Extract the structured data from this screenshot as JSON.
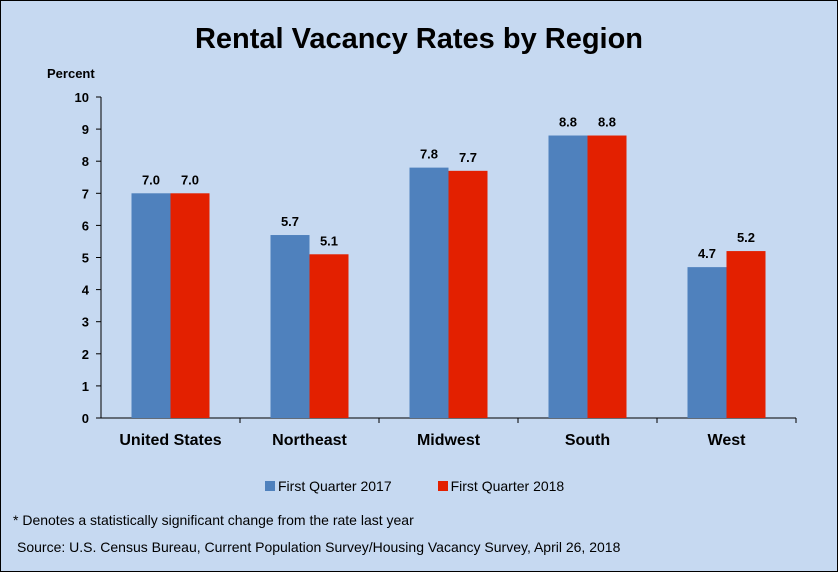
{
  "chart_data": {
    "type": "bar",
    "title": "Rental Vacancy Rates by Region",
    "ylabel": "Percent",
    "xlabel": "",
    "ylim": [
      0,
      10
    ],
    "yticks": [
      "0",
      "1",
      "2",
      "3",
      "4",
      "5",
      "6",
      "7",
      "8",
      "9",
      "10"
    ],
    "categories": [
      "United States",
      "Northeast",
      "Midwest",
      "South",
      "West"
    ],
    "series": [
      {
        "name": "First Quarter 2017",
        "color": "#4f81bd",
        "values": [
          7.0,
          5.7,
          7.8,
          8.8,
          4.7
        ],
        "labels": [
          "7.0",
          "5.7",
          "7.8",
          "8.8",
          "4.7"
        ]
      },
      {
        "name": "First Quarter 2018",
        "color": "#e32000",
        "values": [
          7.0,
          5.1,
          7.7,
          8.8,
          5.2
        ],
        "labels": [
          "7.0",
          "5.1",
          "7.7",
          "8.8",
          "5.2"
        ]
      }
    ],
    "grid": false,
    "legend_position": "bottom"
  },
  "footnote": "* Denotes a statistically significant change from the rate last year",
  "source": "Source: U.S. Census Bureau, Current Population Survey/Housing Vacancy Survey, April 26, 2018"
}
